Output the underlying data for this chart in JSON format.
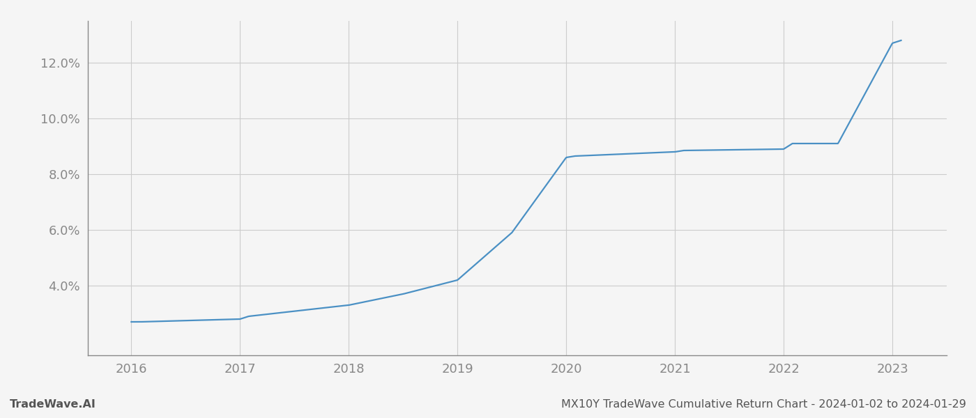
{
  "x_years": [
    2016,
    2016.08,
    2017,
    2017.08,
    2018,
    2018.5,
    2019,
    2019.5,
    2020,
    2020.08,
    2021,
    2021.08,
    2022,
    2022.08,
    2022.5,
    2023,
    2023.08
  ],
  "y_values": [
    0.027,
    0.027,
    0.028,
    0.029,
    0.033,
    0.037,
    0.042,
    0.059,
    0.086,
    0.0865,
    0.088,
    0.0885,
    0.089,
    0.091,
    0.091,
    0.127,
    0.128
  ],
  "line_color": "#4a90c4",
  "line_width": 1.6,
  "bg_color": "#f5f5f5",
  "plot_bg_color": "#f5f5f5",
  "grid_color": "#cccccc",
  "tick_color": "#888888",
  "spine_color": "#888888",
  "ylabel_ticks": [
    0.04,
    0.06,
    0.08,
    0.1,
    0.12
  ],
  "xlabel_ticks": [
    2016,
    2017,
    2018,
    2019,
    2020,
    2021,
    2022,
    2023
  ],
  "xlim_min": 2015.6,
  "xlim_max": 2023.5,
  "ylim_min": 0.015,
  "ylim_max": 0.135,
  "footer_left": "TradeWave.AI",
  "footer_right": "MX10Y TradeWave Cumulative Return Chart - 2024-01-02 to 2024-01-29",
  "footer_color": "#555555",
  "footer_fontsize": 11.5
}
